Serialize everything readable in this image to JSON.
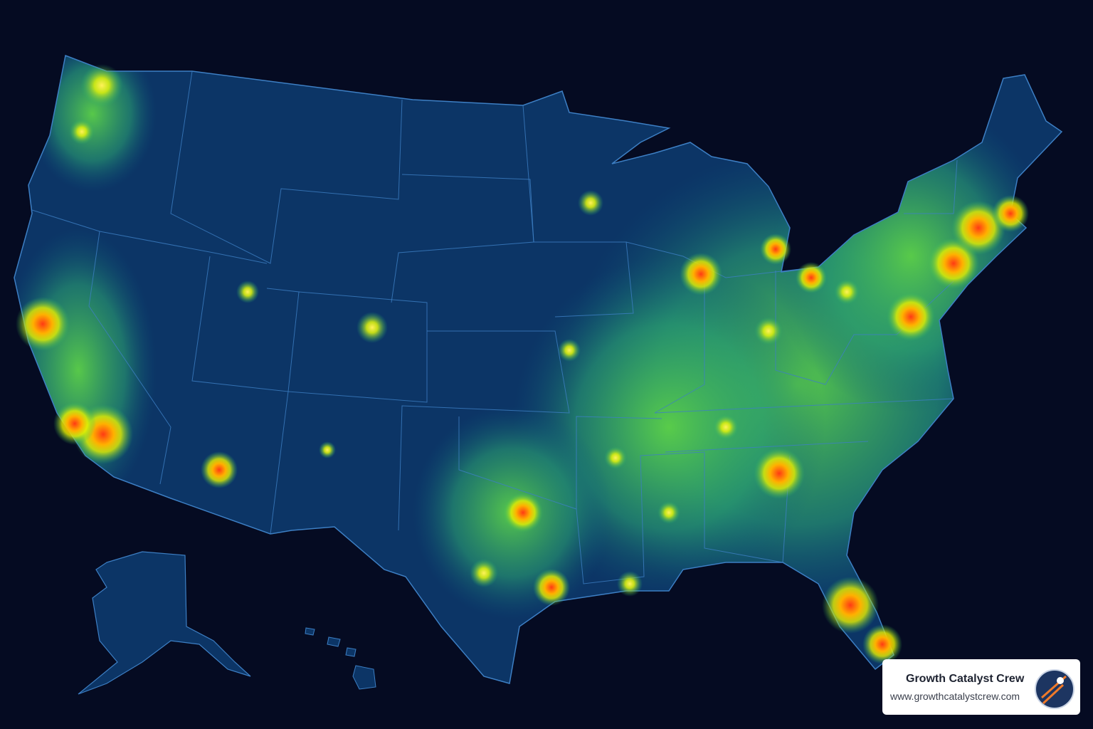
{
  "badge": {
    "title": "Growth Catalyst Crew",
    "url": "www.growthcatalystcrew.com"
  }
}
